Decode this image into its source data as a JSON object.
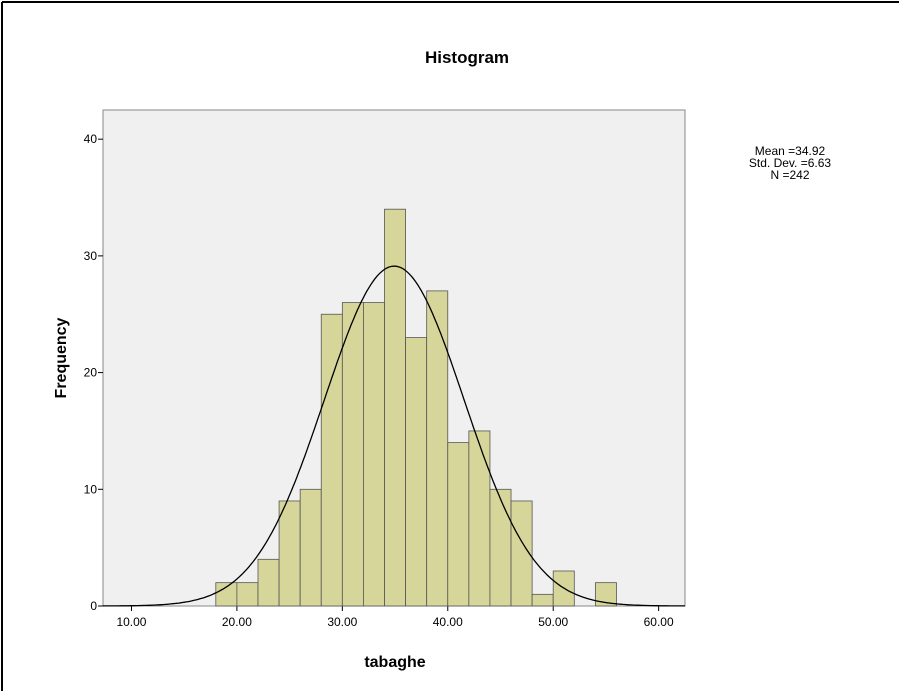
{
  "chart_data": {
    "type": "histogram",
    "title": "Histogram",
    "x_label": "tabaghe",
    "y_label": "Frequency",
    "bins": [
      18,
      20,
      22,
      24,
      26,
      28,
      30,
      32,
      34,
      36,
      38,
      40,
      42,
      44,
      46,
      48,
      50,
      52,
      54,
      56
    ],
    "values": [
      2,
      2,
      4,
      9,
      10,
      25,
      26,
      26,
      34,
      23,
      27,
      14,
      15,
      10,
      9,
      1,
      3,
      0,
      2
    ],
    "color": "#d6d69a",
    "xlim": [
      7.3,
      62.5
    ],
    "xticks": [
      {
        "value": 10,
        "label": "10.00"
      },
      {
        "value": 20,
        "label": "20.00"
      },
      {
        "value": 30,
        "label": "30.00"
      },
      {
        "value": 40,
        "label": "40.00"
      },
      {
        "value": 50,
        "label": "50.00"
      },
      {
        "value": 60,
        "label": "60.00"
      }
    ],
    "ylim": [
      0,
      42.5
    ],
    "yticks": [
      0,
      10,
      20,
      30,
      40
    ],
    "normal_curve": true,
    "stats": [
      {
        "label": "Mean =",
        "value": "34.92"
      },
      {
        "label": "Std. Dev. =",
        "value": "6.63"
      },
      {
        "label": "N =",
        "value": "242"
      }
    ]
  }
}
